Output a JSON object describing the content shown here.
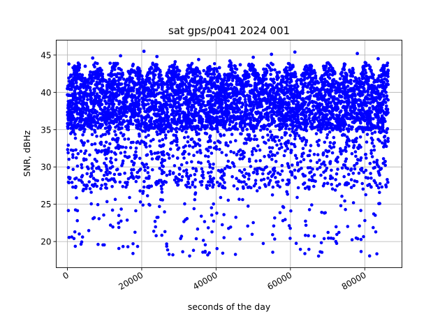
{
  "chart_data": {
    "type": "scatter",
    "title": "sat gps/p041 2024 001",
    "xlabel": "seconds of the day",
    "ylabel": "SNR, dBHz",
    "xlim": [
      -3000,
      90000
    ],
    "ylim": [
      16.5,
      47.0
    ],
    "xticks": [
      0,
      20000,
      40000,
      60000,
      80000
    ],
    "xtick_labels": [
      "0",
      "20000",
      "40000",
      "60000",
      "80000"
    ],
    "yticks": [
      20,
      25,
      30,
      35,
      40,
      45
    ],
    "ytick_labels": [
      "20",
      "25",
      "30",
      "35",
      "40",
      "45"
    ],
    "grid": true,
    "marker_color": "#0000ff",
    "series": [
      {
        "values_x": [
          0,
          400,
          900,
          1300,
          1800,
          2400,
          3100,
          3600,
          4200,
          4800,
          5500,
          6100,
          6800,
          7500,
          8100,
          8800,
          9500,
          10200,
          10900,
          11500,
          12200,
          12900,
          13600,
          14300,
          15000,
          15700,
          16400,
          17100,
          17800,
          18500,
          19200,
          19900,
          20600,
          21300,
          22000,
          22700,
          23400,
          24100,
          24800,
          25500,
          26200,
          26900,
          27600,
          28300,
          29000,
          29700,
          30400,
          31100,
          31800,
          32500,
          33200,
          33900,
          34600,
          35300,
          36000,
          36700,
          37400,
          38100,
          38800,
          39500,
          40200,
          40900,
          41600,
          42300,
          43000,
          43700,
          44400,
          45100,
          45800,
          46500,
          47200,
          47900,
          48600,
          49300,
          50000,
          50700,
          51400,
          52100,
          52800,
          53500,
          54200,
          54900,
          55600,
          56300,
          57000,
          57700,
          58400,
          59100,
          59800,
          60500,
          61200,
          61900,
          62600,
          63300,
          64000,
          64700,
          65400,
          66100,
          66800,
          67500,
          68200,
          68900,
          69600,
          70300,
          71000,
          71700,
          72400,
          73100,
          73800,
          74500,
          75200,
          75900,
          76600,
          77300,
          78000,
          78700,
          79400,
          80100,
          80800,
          81500,
          82200,
          82900,
          83600,
          84300,
          85000,
          85700,
          86300
        ],
        "values_y": [
          40.5,
          43.8,
          38.2,
          41.0,
          36.5,
          42.5,
          39.1,
          40.8,
          35.2,
          43.5,
          37.8,
          41.9,
          44.6,
          38.5,
          36.9,
          42.3,
          40.1,
          39.6,
          37.2,
          43.9,
          38.8,
          41.5,
          36.4,
          44.9,
          39.9,
          37.5,
          42.8,
          35.8,
          40.6,
          38.1,
          41.2,
          36.8,
          45.5,
          39.4,
          37.9,
          43.2,
          40.3,
          44.8,
          38.6,
          41.8,
          36.2,
          42.6,
          39.0,
          37.6,
          44.1,
          40.9,
          38.3,
          42.1,
          36.6,
          43.6,
          39.7,
          41.4,
          37.3,
          44.4,
          38.9,
          42.9,
          36.1,
          40.2,
          39.3,
          37.7,
          41.6,
          43.3,
          38.4,
          42.4,
          36.7,
          44.2,
          40.4,
          39.8,
          37.4,
          43.7,
          41.1,
          38.7,
          42.0,
          36.3,
          44.7,
          39.5,
          41.7,
          37.1,
          43.1,
          40.0,
          38.0,
          45.1,
          39.2,
          36.9,
          42.7,
          40.7,
          38.6,
          37.0,
          41.3,
          43.4,
          45.4,
          39.6,
          37.8,
          42.2,
          36.4,
          43.0,
          40.5,
          38.1,
          41.9,
          37.5,
          39.8,
          43.5,
          36.8,
          40.9,
          38.2,
          42.5,
          37.6,
          41.0,
          39.4,
          43.8,
          36.6,
          40.3,
          42.8,
          38.8,
          45.2,
          41.5,
          37.9,
          44.0,
          39.1,
          36.2,
          42.3,
          40.6,
          44.5,
          38.4,
          43.6,
          40.0,
          42.9
        ]
      }
    ],
    "density_bands": [
      {
        "x0": 0,
        "x1": 86300,
        "core_min": 30,
        "core_max": 41.5,
        "peak_max": 45.5,
        "floor_min": 18
      }
    ]
  }
}
